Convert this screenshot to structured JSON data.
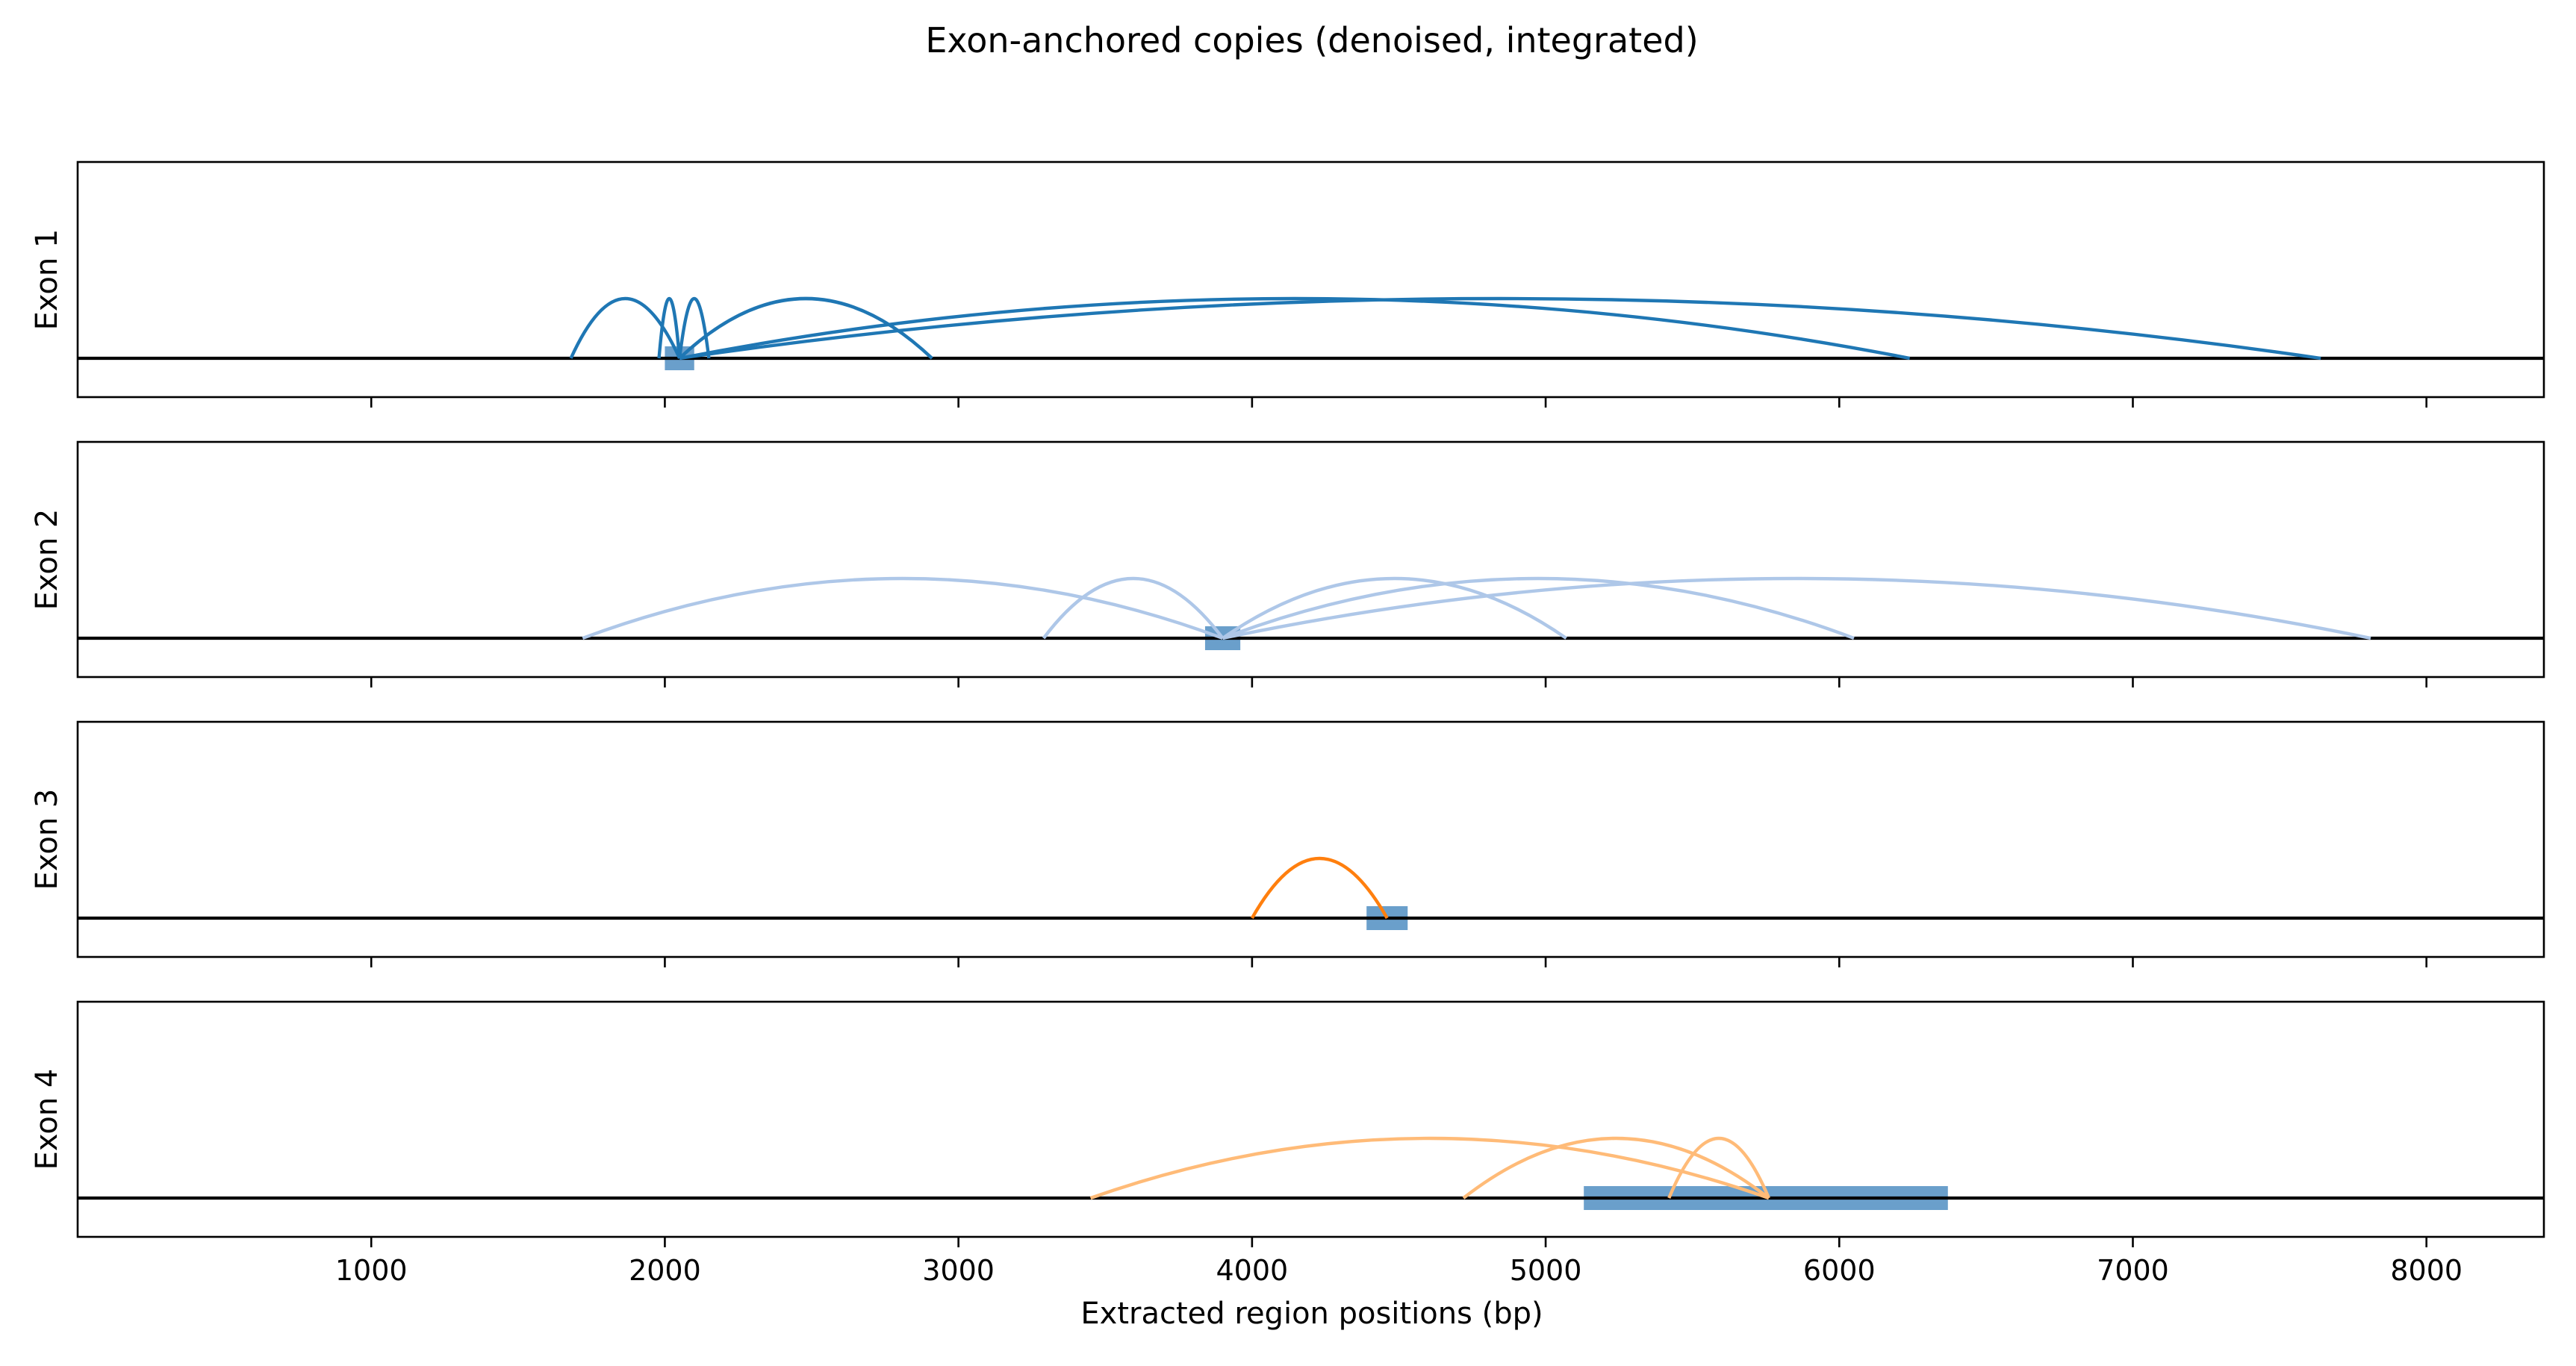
{
  "chart_data": {
    "type": "arc",
    "title": "Exon-anchored copies (denoised, integrated)",
    "xlabel": "Extracted region positions (bp)",
    "xlim": [
      0,
      8400
    ],
    "xticks": [
      1000,
      2000,
      3000,
      4000,
      5000,
      6000,
      7000,
      8000
    ],
    "panels": [
      {
        "ylabel": "Exon 1",
        "color": "#1f77b4",
        "exon": [
          2000,
          2100
        ],
        "copies": [
          {
            "start": 1680,
            "end": 2050
          },
          {
            "start": 1980,
            "end": 2050
          },
          {
            "start": 2050,
            "end": 2150
          },
          {
            "start": 2050,
            "end": 2910
          },
          {
            "start": 2050,
            "end": 6240
          },
          {
            "start": 2050,
            "end": 7640
          }
        ]
      },
      {
        "ylabel": "Exon 2",
        "color": "#aec7e8",
        "exon": [
          3840,
          3960
        ],
        "copies": [
          {
            "start": 1720,
            "end": 3900
          },
          {
            "start": 3290,
            "end": 3900
          },
          {
            "start": 3900,
            "end": 5070
          },
          {
            "start": 3900,
            "end": 6050
          },
          {
            "start": 3900,
            "end": 7810
          }
        ]
      },
      {
        "ylabel": "Exon 3",
        "color": "#ff7f0e",
        "exon": [
          4390,
          4530
        ],
        "copies": [
          {
            "start": 4000,
            "end": 4460
          }
        ]
      },
      {
        "ylabel": "Exon 4",
        "color": "#ffbb78",
        "exon": [
          5130,
          6370
        ],
        "copies": [
          {
            "start": 3450,
            "end": 5760
          },
          {
            "start": 4720,
            "end": 5760
          },
          {
            "start": 5420,
            "end": 5760
          }
        ]
      }
    ],
    "exon_marker_color": "#6a9fcb"
  }
}
